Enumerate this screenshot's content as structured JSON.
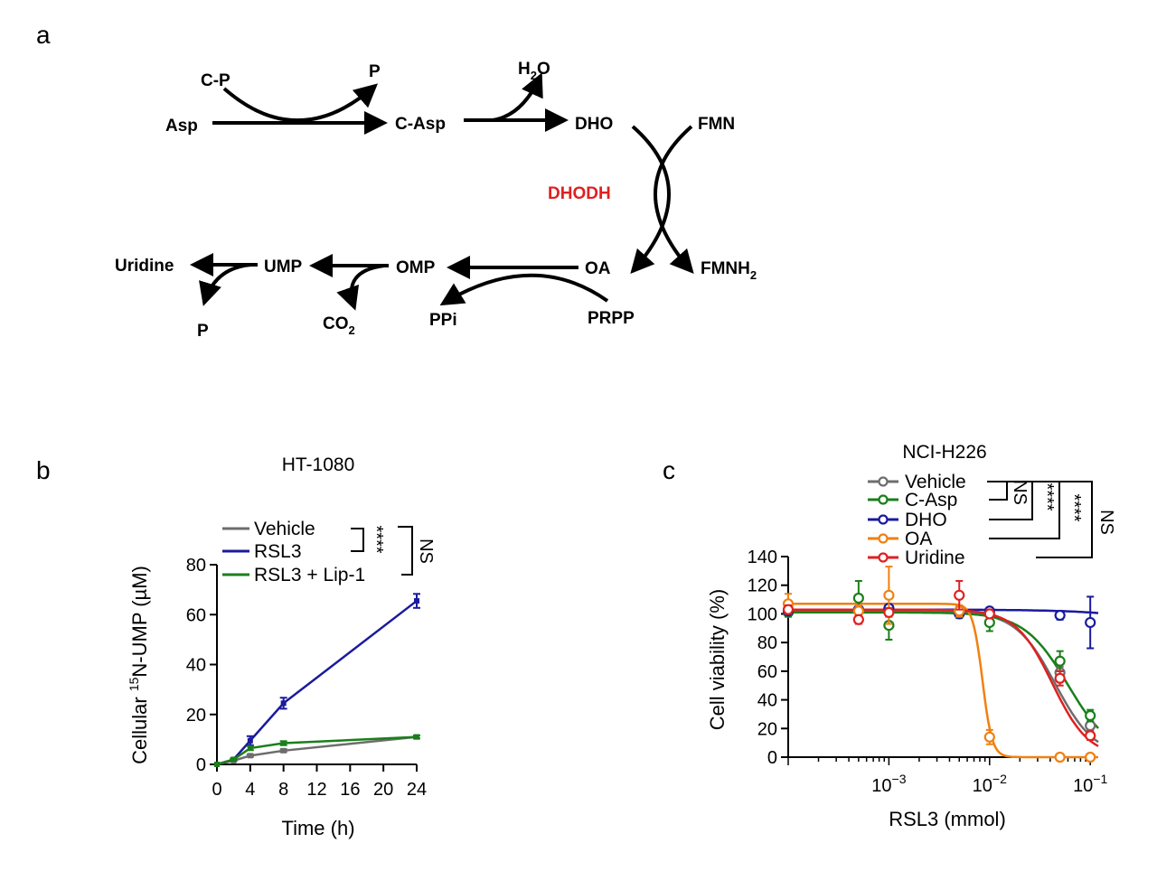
{
  "panels": {
    "a": "a",
    "b": "b",
    "c": "c"
  },
  "pathway": {
    "nodes": {
      "cp": "C-P",
      "p1": "P",
      "asp": "Asp",
      "casp": "C-Asp",
      "h2o_main": "H",
      "h2o_sub": "2",
      "h2o_end": "O",
      "dho": "DHO",
      "fmn": "FMN",
      "enzyme": "DHODH",
      "fmnh_main": "FMNH",
      "fmnh_sub": "2",
      "oa": "OA",
      "prpp": "PRPP",
      "omp": "OMP",
      "ppi": "PPi",
      "ump": "UMP",
      "co2_main": "CO",
      "co2_sub": "2",
      "uridine": "Uridine",
      "p2": "P"
    },
    "colors": {
      "enzyme": "#e02020"
    }
  },
  "chart_data": [
    {
      "type": "line",
      "title": "HT-1080",
      "xlabel": "Time (h)",
      "ylabel_pre": "Cellular ",
      "ylabel_sup": "15",
      "ylabel_post": "N-UMP (µM)",
      "xlim": [
        0,
        24
      ],
      "ylim": [
        0,
        80
      ],
      "xticks": [
        0,
        4,
        8,
        12,
        16,
        20,
        24
      ],
      "yticks": [
        0,
        20,
        40,
        60,
        80
      ],
      "x": [
        0,
        2,
        4,
        8,
        24
      ],
      "series": [
        {
          "name": "Vehicle",
          "color": "#6d6d6d",
          "values": [
            0,
            1.5,
            3.5,
            5.5,
            11
          ],
          "errors": [
            0,
            0.3,
            0.5,
            0.6,
            0.6
          ]
        },
        {
          "name": "RSL3",
          "color": "#1a1a9e",
          "values": [
            0,
            2,
            9.5,
            24.5,
            65.5
          ],
          "errors": [
            0,
            0.4,
            1.8,
            2.2,
            2.8
          ]
        },
        {
          "name": "RSL3 + Lip-1",
          "color": "#1a7f1a",
          "values": [
            0,
            2,
            6.5,
            8.5,
            11
          ],
          "errors": [
            0,
            0.3,
            0.8,
            0.8,
            0.6
          ]
        }
      ],
      "significance": [
        {
          "label": "****",
          "between": [
            "Vehicle",
            "RSL3"
          ]
        },
        {
          "label": "NS",
          "between": [
            "Vehicle",
            "RSL3 + Lip-1"
          ]
        }
      ]
    },
    {
      "type": "scatter",
      "title": "NCI-H226",
      "xlabel": "RSL3 (mmol)",
      "ylabel": "Cell viability (%)",
      "xscale": "log",
      "xlim": [
        0.0001,
        0.12
      ],
      "ylim": [
        0,
        140
      ],
      "xtick_labels": [
        {
          "value": 0.001,
          "base": "10",
          "exp": "−3"
        },
        {
          "value": 0.01,
          "base": "10",
          "exp": "−2"
        },
        {
          "value": 0.1,
          "base": "10",
          "exp": "−1"
        }
      ],
      "yticks": [
        0,
        20,
        40,
        60,
        80,
        100,
        120,
        140
      ],
      "x": [
        0.0001,
        0.0005,
        0.001,
        0.005,
        0.01,
        0.05,
        0.1
      ],
      "series": [
        {
          "name": "Vehicle",
          "color": "#6d6d6d",
          "values": [
            102,
            103,
            102,
            102,
            101,
            59,
            22
          ],
          "errors": [
            2,
            2,
            2,
            2,
            2,
            4,
            3
          ],
          "ic50": 0.045,
          "hill": 2.2,
          "top": 102,
          "bottom": 0
        },
        {
          "name": "C-Asp",
          "color": "#1a7f1a",
          "values": [
            101,
            111,
            92,
            101,
            94,
            67,
            29
          ],
          "errors": [
            3,
            12,
            10,
            4,
            6,
            7,
            4
          ],
          "ic50": 0.06,
          "hill": 2.0,
          "top": 101,
          "bottom": 0
        },
        {
          "name": "DHO",
          "color": "#1a1a9e",
          "values": [
            102,
            103,
            104,
            100,
            102,
            99,
            94
          ],
          "errors": [
            2,
            2,
            2,
            2,
            2,
            3,
            18
          ],
          "ic50": 5,
          "hill": 1.0,
          "top": 103,
          "bottom": 0
        },
        {
          "name": "OA",
          "color": "#f08010",
          "values": [
            107,
            102,
            113,
            102,
            14,
            0,
            0
          ],
          "errors": [
            7,
            4,
            20,
            4,
            5,
            0,
            0
          ],
          "ic50": 0.0085,
          "hill": 9,
          "top": 107,
          "bottom": 0
        },
        {
          "name": "Uridine",
          "color": "#e02020",
          "values": [
            103,
            96,
            101,
            113,
            100,
            55,
            15
          ],
          "errors": [
            3,
            3,
            3,
            10,
            3,
            5,
            3
          ],
          "ic50": 0.042,
          "hill": 2.4,
          "top": 103,
          "bottom": 0
        }
      ],
      "significance": [
        {
          "label": "NS",
          "between": [
            "Vehicle",
            "C-Asp"
          ]
        },
        {
          "label": "****",
          "between": [
            "Vehicle",
            "DHO"
          ]
        },
        {
          "label": "****",
          "between": [
            "Vehicle",
            "OA"
          ]
        },
        {
          "label": "NS",
          "between": [
            "Vehicle",
            "Uridine"
          ]
        }
      ]
    }
  ]
}
